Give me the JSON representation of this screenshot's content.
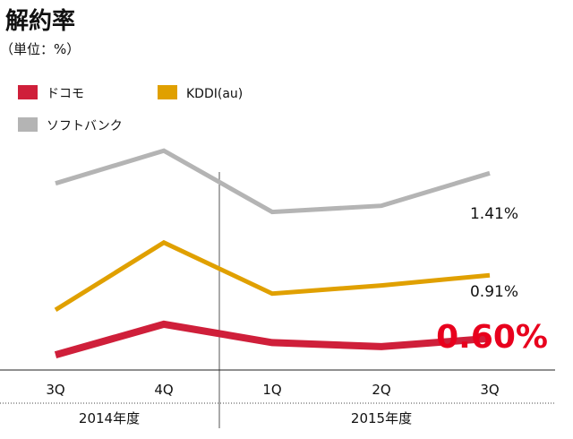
{
  "chart_data": {
    "type": "line",
    "title": "解約率",
    "subtitle": "（単位：%）",
    "categories": [
      "3Q",
      "4Q",
      "1Q",
      "2Q",
      "3Q"
    ],
    "periods": [
      {
        "label": "2014年度",
        "categories": [
          "3Q",
          "4Q"
        ]
      },
      {
        "label": "2015年度",
        "categories": [
          "1Q",
          "2Q",
          "3Q"
        ]
      }
    ],
    "ylim": [
      0.45,
      1.6
    ],
    "grid": false,
    "legend_position": "top-left",
    "series": [
      {
        "name": "ドコモ",
        "color": "#cf1f3a",
        "values": [
          0.52,
          0.67,
          0.58,
          0.56,
          0.6
        ],
        "end_label": "0.60%"
      },
      {
        "name": "KDDI(au)",
        "color": "#e0a000",
        "values": [
          0.74,
          1.07,
          0.82,
          0.86,
          0.91
        ],
        "end_label": "0.91%"
      },
      {
        "name": "ソフトバンク",
        "color": "#b4b4b4",
        "values": [
          1.36,
          1.52,
          1.22,
          1.25,
          1.41
        ],
        "end_label": "1.41%"
      }
    ]
  }
}
